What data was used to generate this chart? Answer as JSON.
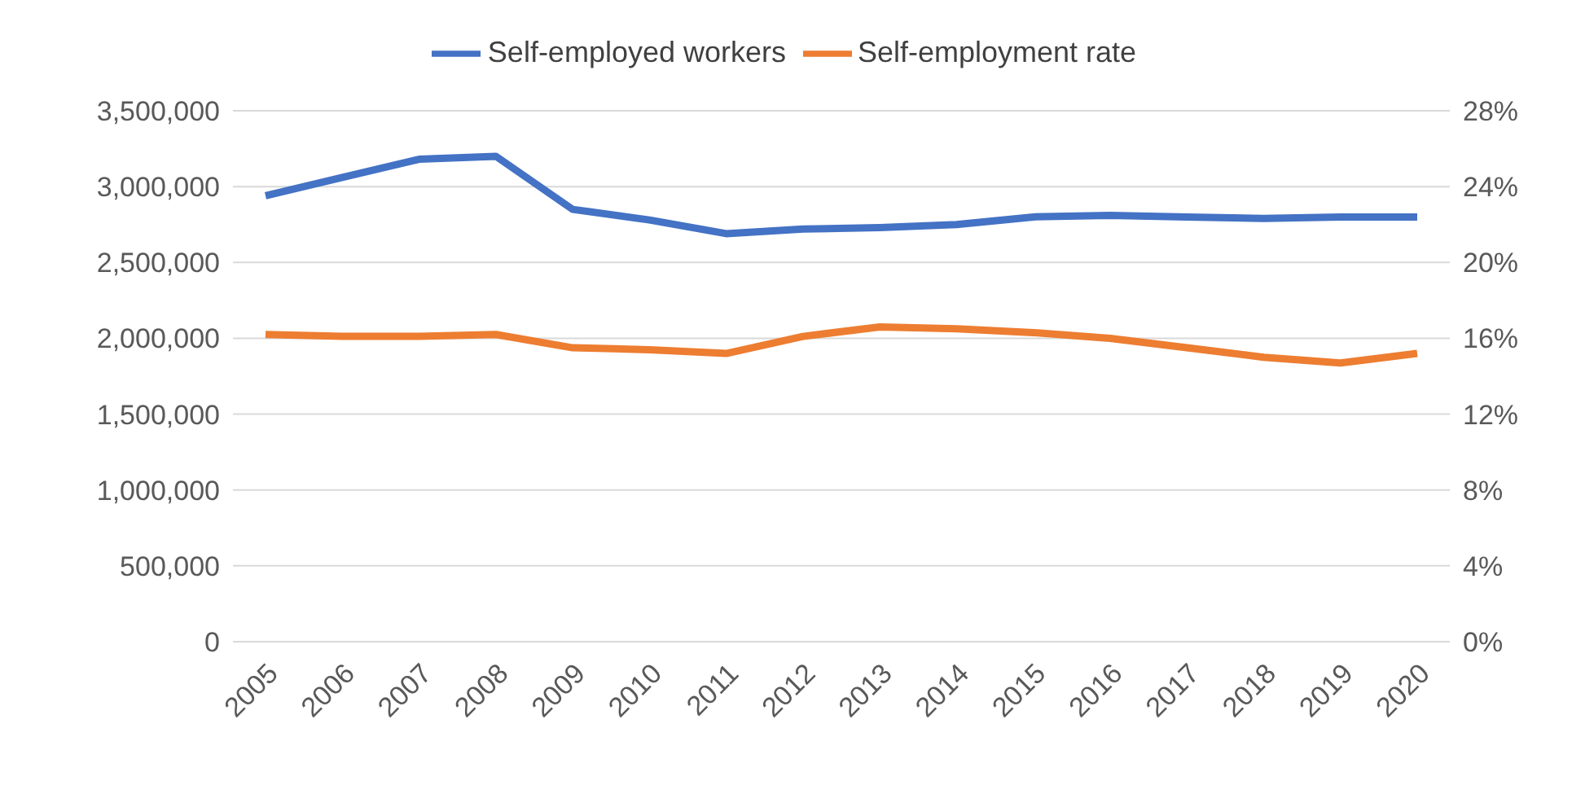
{
  "chart_data": {
    "type": "line",
    "categories": [
      "2005",
      "2006",
      "2007",
      "2008",
      "2009",
      "2010",
      "2011",
      "2012",
      "2013",
      "2014",
      "2015",
      "2016",
      "2017",
      "2018",
      "2019",
      "2020"
    ],
    "series": [
      {
        "name": "Self-employed workers",
        "color": "#4472c4",
        "values": [
          2940000,
          3060000,
          3180000,
          3200000,
          2850000,
          2780000,
          2690000,
          2720000,
          2730000,
          2750000,
          2800000,
          2810000,
          2800000,
          2790000,
          2800000,
          2800000
        ]
      },
      {
        "name": "Self-employment rate",
        "color": "#ed7d31",
        "axis": "y2",
        "values": [
          16.2,
          16.1,
          16.1,
          16.2,
          15.5,
          15.4,
          15.2,
          16.1,
          16.6,
          16.5,
          16.3,
          16.0,
          15.5,
          15.0,
          14.7,
          15.2
        ]
      }
    ],
    "ylim": [
      0,
      3500000
    ],
    "yticks": [
      0,
      {
        "value": 500000,
        "label": "500,000"
      },
      {
        "value": 1000000,
        "label": "1,000,000"
      },
      {
        "value": 1500000,
        "label": "1,500,000"
      },
      {
        "value": 2000000,
        "label": "2,000,000"
      },
      {
        "value": 2500000,
        "label": "2,500,000"
      },
      {
        "value": 3000000,
        "label": "3,000,000"
      },
      {
        "value": 3500000,
        "label": "3,500,000"
      }
    ],
    "y2lim": [
      0,
      28
    ],
    "y2ticks": [
      {
        "value": 0,
        "label": "0%"
      },
      {
        "value": 4,
        "label": "4%"
      },
      {
        "value": 8,
        "label": "8%"
      },
      {
        "value": 12,
        "label": "12%"
      },
      {
        "value": 16,
        "label": "16%"
      },
      {
        "value": 20,
        "label": "20%"
      },
      {
        "value": 24,
        "label": "24%"
      },
      {
        "value": 28,
        "label": "28%"
      }
    ],
    "grid": "y",
    "legend": "top",
    "marker": "none",
    "line_style": "solid"
  }
}
